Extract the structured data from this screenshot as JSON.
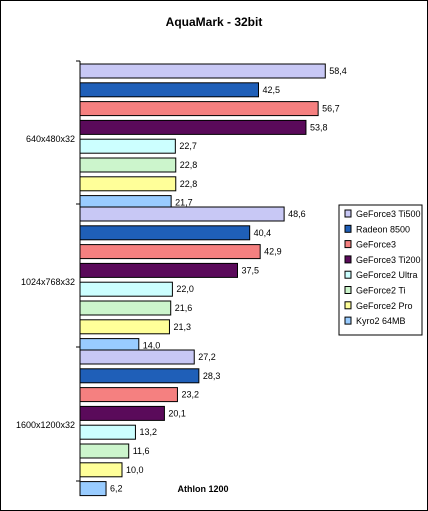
{
  "chart_data": {
    "type": "bar",
    "orientation": "horizontal",
    "title": "AquaMark - 32bit",
    "xlabel": "Athlon 1200",
    "ylabel": "",
    "categories": [
      "640x480x32",
      "1024x768x32",
      "1600x1200x32"
    ],
    "xlim": [
      0,
      70
    ],
    "grid": false,
    "legend_position": "right",
    "series": [
      {
        "name": "GeForce3 Ti500",
        "color": "#c8c8f5",
        "values": [
          58.4,
          48.6,
          27.2
        ],
        "labels": [
          "58,4",
          "48,6",
          "27,2"
        ]
      },
      {
        "name": "Radeon 8500",
        "color": "#1f5fb8",
        "values": [
          42.5,
          40.4,
          28.3
        ],
        "labels": [
          "42,5",
          "40,4",
          "28,3"
        ]
      },
      {
        "name": "GeForce3",
        "color": "#f58080",
        "values": [
          56.7,
          42.9,
          23.2
        ],
        "labels": [
          "56,7",
          "42,9",
          "23,2"
        ]
      },
      {
        "name": "GeForce3 Ti200",
        "color": "#5a0a5a",
        "values": [
          53.8,
          37.5,
          20.1
        ],
        "labels": [
          "53,8",
          "37,5",
          "20,1"
        ]
      },
      {
        "name": "GeForce2 Ultra",
        "color": "#ccffff",
        "values": [
          22.7,
          22.0,
          13.2
        ],
        "labels": [
          "22,7",
          "22,0",
          "13,2"
        ]
      },
      {
        "name": "GeForce2 Ti",
        "color": "#ccf5cc",
        "values": [
          22.8,
          21.6,
          11.6
        ],
        "labels": [
          "22,8",
          "21,6",
          "11,6"
        ]
      },
      {
        "name": "GeForce2 Pro",
        "color": "#ffff99",
        "values": [
          22.8,
          21.3,
          10.0
        ],
        "labels": [
          "22,8",
          "21,3",
          "10,0"
        ]
      },
      {
        "name": "Kyro2 64MB",
        "color": "#99ccff",
        "values": [
          21.7,
          14.0,
          6.2
        ],
        "labels": [
          "21,7",
          "14,0",
          "6,2"
        ]
      }
    ]
  }
}
